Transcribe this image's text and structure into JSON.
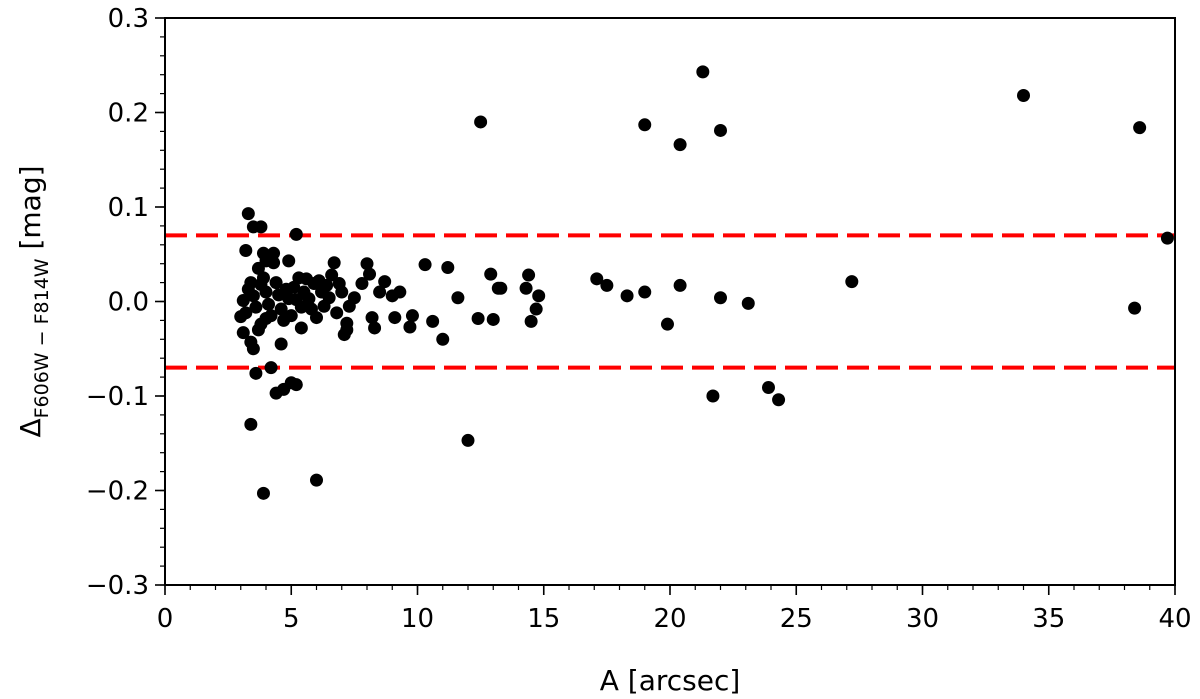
{
  "chart_data": {
    "type": "scatter",
    "xlabel": "A [arcsec]",
    "ylabel": {
      "main": "Δ",
      "subscript": "F606W − F814W",
      "unit": " [mag]"
    },
    "xlim": [
      0,
      40
    ],
    "ylim": [
      -0.3,
      0.3
    ],
    "x_ticks": [
      0,
      5,
      10,
      15,
      20,
      25,
      30,
      35,
      40
    ],
    "x_tick_labels": [
      "0",
      "5",
      "10",
      "15",
      "20",
      "25",
      "30",
      "35",
      "40"
    ],
    "y_ticks": [
      -0.3,
      -0.2,
      -0.1,
      0.0,
      0.1,
      0.2,
      0.3
    ],
    "y_tick_labels": [
      "−0.3",
      "−0.2",
      "−0.1",
      "0.0",
      "0.1",
      "0.2",
      "0.3"
    ],
    "x_minor_step": 1,
    "y_minor_step": 0.02,
    "grid": false,
    "point_color": "#000000",
    "threshold_color": "#ff0000",
    "thresholds": [
      0.07,
      -0.07
    ],
    "points": [
      [
        3.3,
        0.093
      ],
      [
        3.5,
        0.079
      ],
      [
        3.8,
        0.079
      ],
      [
        3.2,
        0.054
      ],
      [
        3.9,
        0.051
      ],
      [
        4.3,
        0.051
      ],
      [
        5.2,
        0.071
      ],
      [
        4.0,
        0.043
      ],
      [
        4.3,
        0.041
      ],
      [
        4.9,
        0.043
      ],
      [
        3.7,
        0.035
      ],
      [
        3.1,
        0.001
      ],
      [
        3.2,
        -0.012
      ],
      [
        3.0,
        -0.016
      ],
      [
        3.3,
        0.013
      ],
      [
        3.4,
        0.02
      ],
      [
        3.5,
        0.006
      ],
      [
        3.6,
        -0.006
      ],
      [
        3.8,
        0.018
      ],
      [
        3.9,
        0.025
      ],
      [
        4.0,
        0.01
      ],
      [
        4.1,
        -0.003
      ],
      [
        4.2,
        -0.015
      ],
      [
        4.4,
        0.02
      ],
      [
        4.5,
        0.007
      ],
      [
        4.6,
        -0.008
      ],
      [
        4.7,
        -0.02
      ],
      [
        4.8,
        0.013
      ],
      [
        4.9,
        0.003
      ],
      [
        5.0,
        -0.015
      ],
      [
        5.1,
        0.015
      ],
      [
        5.2,
        0.002
      ],
      [
        5.3,
        0.025
      ],
      [
        5.4,
        -0.006
      ],
      [
        5.5,
        0.01
      ],
      [
        5.6,
        0.024
      ],
      [
        5.7,
        0.003
      ],
      [
        5.8,
        -0.008
      ],
      [
        5.9,
        0.019
      ],
      [
        6.0,
        -0.017
      ],
      [
        6.1,
        0.022
      ],
      [
        6.2,
        0.01
      ],
      [
        6.3,
        -0.005
      ],
      [
        6.4,
        0.017
      ],
      [
        6.5,
        0.004
      ],
      [
        6.6,
        0.028
      ],
      [
        6.7,
        0.041
      ],
      [
        6.8,
        -0.012
      ],
      [
        6.9,
        0.019
      ],
      [
        7.0,
        0.01
      ],
      [
        7.1,
        -0.035
      ],
      [
        7.2,
        -0.03
      ],
      [
        7.3,
        -0.005
      ],
      [
        7.5,
        0.004
      ],
      [
        3.1,
        -0.033
      ],
      [
        3.4,
        -0.043
      ],
      [
        3.5,
        -0.05
      ],
      [
        3.7,
        -0.03
      ],
      [
        3.8,
        -0.024
      ],
      [
        4.0,
        -0.018
      ],
      [
        4.2,
        -0.07
      ],
      [
        4.4,
        -0.097
      ],
      [
        4.6,
        -0.045
      ],
      [
        4.7,
        -0.093
      ],
      [
        5.0,
        -0.086
      ],
      [
        5.2,
        -0.088
      ],
      [
        5.4,
        -0.028
      ],
      [
        3.6,
        -0.076
      ],
      [
        3.4,
        -0.13
      ],
      [
        3.9,
        -0.203
      ],
      [
        6.0,
        -0.189
      ],
      [
        7.2,
        -0.023
      ],
      [
        7.8,
        0.019
      ],
      [
        8.0,
        0.04
      ],
      [
        8.1,
        0.029
      ],
      [
        8.2,
        -0.017
      ],
      [
        8.3,
        -0.028
      ],
      [
        8.5,
        0.01
      ],
      [
        8.7,
        0.021
      ],
      [
        9.0,
        0.006
      ],
      [
        9.1,
        -0.017
      ],
      [
        9.3,
        0.01
      ],
      [
        9.7,
        -0.027
      ],
      [
        9.8,
        -0.015
      ],
      [
        10.3,
        0.039
      ],
      [
        10.6,
        -0.021
      ],
      [
        11.0,
        -0.04
      ],
      [
        11.2,
        0.036
      ],
      [
        11.6,
        0.004
      ],
      [
        12.0,
        -0.147
      ],
      [
        12.4,
        -0.018
      ],
      [
        12.5,
        0.19
      ],
      [
        12.9,
        0.029
      ],
      [
        13.0,
        -0.019
      ],
      [
        13.2,
        0.014
      ],
      [
        13.3,
        0.014
      ],
      [
        14.3,
        0.014
      ],
      [
        14.4,
        0.028
      ],
      [
        14.5,
        -0.021
      ],
      [
        14.7,
        -0.008
      ],
      [
        14.8,
        0.006
      ],
      [
        17.1,
        0.024
      ],
      [
        17.5,
        0.017
      ],
      [
        18.3,
        0.006
      ],
      [
        19.0,
        0.187
      ],
      [
        19.0,
        0.01
      ],
      [
        19.9,
        -0.024
      ],
      [
        20.4,
        0.166
      ],
      [
        20.4,
        0.017
      ],
      [
        21.3,
        0.243
      ],
      [
        21.7,
        -0.1
      ],
      [
        22.0,
        0.181
      ],
      [
        22.0,
        0.004
      ],
      [
        23.1,
        -0.002
      ],
      [
        23.9,
        -0.091
      ],
      [
        24.3,
        -0.104
      ],
      [
        27.2,
        0.021
      ],
      [
        34.0,
        0.218
      ],
      [
        38.4,
        -0.007
      ],
      [
        38.6,
        0.184
      ],
      [
        39.7,
        0.067
      ]
    ]
  }
}
